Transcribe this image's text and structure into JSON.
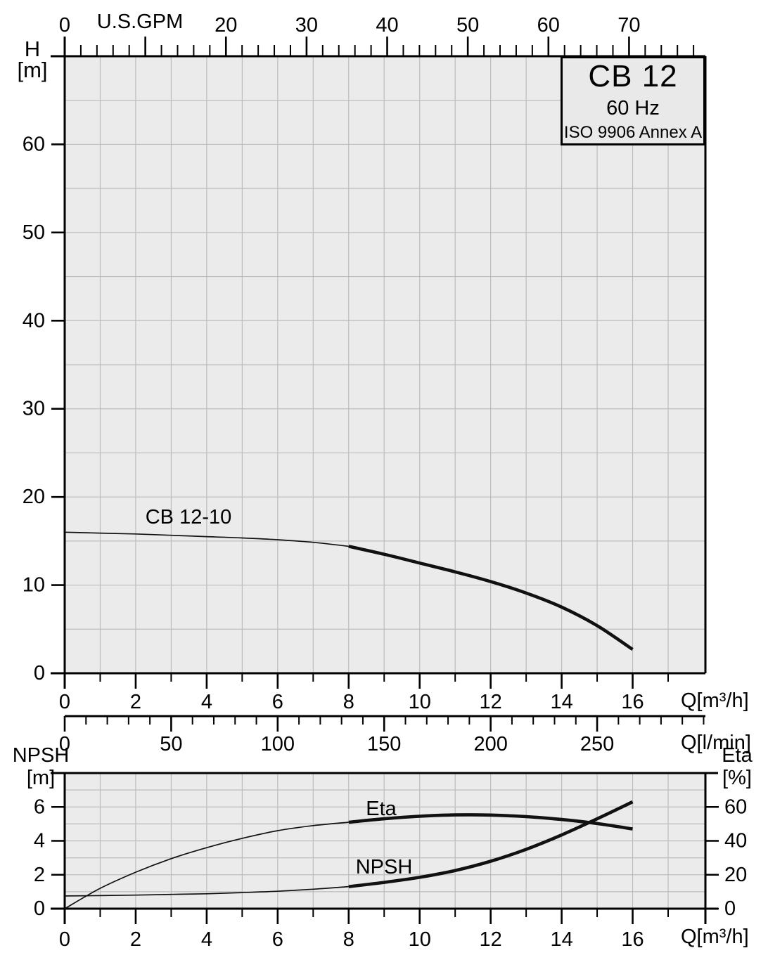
{
  "title_box": {
    "model": "CB 12",
    "frequency": "60 Hz",
    "standard": "ISO 9906 Annex A"
  },
  "labels": {
    "h_axis": "H",
    "h_unit": "[m]",
    "gpm_axis_title": "U.S.GPM",
    "q_m3h": "Q[m³/h]",
    "q_lmin": "Q[l/min]",
    "q_m3h_lower": "Q[m³/h]",
    "npsh_axis": "NPSH",
    "npsh_unit": "[m]",
    "eta_axis": "Eta",
    "eta_unit": "[%]",
    "curve_main": "CB 12-10",
    "curve_eta": "Eta",
    "curve_npsh": "NPSH"
  },
  "colors": {
    "plot_bg": "#ebebeb",
    "grid": "#bcbcbc",
    "axis": "#000000",
    "curve": "#111111",
    "title_box_bg": "#e9e9e9"
  },
  "chart_data": [
    {
      "type": "line",
      "title": "CB 12 pump head curve, 60 Hz",
      "xlabel": "Q[m³/h]",
      "ylabel": "H [m]",
      "xlim": [
        0,
        18.05
      ],
      "ylim": [
        0,
        70
      ],
      "x_major_ticks": [
        0,
        2,
        4,
        6,
        8,
        10,
        12,
        14,
        16
      ],
      "x_minor_ticks": [
        1,
        3,
        5,
        7,
        9,
        11,
        13,
        15,
        17
      ],
      "y_ticks": [
        0,
        10,
        20,
        30,
        40,
        50,
        60
      ],
      "y_grid_step": 5,
      "x_grid_step": 1,
      "grid": true,
      "top_axis": {
        "title": "U.S.GPM",
        "unit": "US GPM",
        "major_ticks": [
          0,
          10,
          20,
          30,
          40,
          50,
          60,
          70
        ],
        "title_replaces_tick": 10,
        "minor_step": 2,
        "minor_max": 78,
        "gpm_per_m3h": 4.4029
      },
      "lmin_axis": {
        "label": "Q[l/min]",
        "major_ticks": [
          0,
          50,
          100,
          150,
          200,
          250
        ],
        "minor_step": 10,
        "minor_max": 300,
        "lmin_per_m3h": 16.667
      },
      "series": [
        {
          "name": "CB 12-10",
          "x": [
            0,
            1,
            2,
            3,
            4,
            5,
            6,
            7,
            8,
            9,
            10,
            11,
            12,
            13,
            14,
            15,
            16
          ],
          "y": [
            16.0,
            15.9,
            15.8,
            15.65,
            15.5,
            15.35,
            15.15,
            14.85,
            14.4,
            13.5,
            12.5,
            11.5,
            10.4,
            9.1,
            7.5,
            5.4,
            2.7
          ],
          "thick_from_x": 8
        }
      ]
    },
    {
      "type": "line",
      "title": "NPSH and efficiency curves",
      "xlabel": "Q[m³/h]",
      "ylabel_left": "NPSH [m]",
      "ylabel_right": "Eta [%]",
      "xlim": [
        0,
        18.05
      ],
      "ylim_left": [
        0,
        8
      ],
      "ylim_right": [
        0,
        80
      ],
      "x_major_ticks": [
        0,
        2,
        4,
        6,
        8,
        10,
        12,
        14,
        16
      ],
      "x_minor_ticks": [
        1,
        3,
        5,
        7,
        9,
        11,
        13,
        15,
        17
      ],
      "y_left_ticks": [
        0,
        2,
        4,
        6
      ],
      "y_right_ticks": [
        0,
        20,
        40,
        60
      ],
      "y_grid_step_left": 1,
      "x_grid_step": 1,
      "grid": true,
      "series": [
        {
          "name": "Eta",
          "axis": "right",
          "x": [
            0,
            1,
            2,
            3,
            4,
            5,
            6,
            7,
            8,
            9,
            10,
            11,
            12,
            13,
            14,
            15,
            16
          ],
          "y": [
            0,
            12,
            21.5,
            29.5,
            36,
            41.5,
            46,
            49,
            51,
            53,
            54.5,
            55.3,
            55.2,
            54.3,
            52.6,
            50.2,
            47
          ],
          "thick_from_x": 8
        },
        {
          "name": "NPSH",
          "axis": "left",
          "x": [
            0,
            1,
            2,
            3,
            4,
            5,
            6,
            7,
            8,
            9,
            10,
            11,
            12,
            13,
            14,
            15,
            16
          ],
          "y": [
            0.75,
            0.77,
            0.8,
            0.84,
            0.88,
            0.95,
            1.03,
            1.15,
            1.3,
            1.55,
            1.85,
            2.25,
            2.8,
            3.5,
            4.35,
            5.3,
            6.3
          ],
          "thick_from_x": 8
        }
      ]
    }
  ]
}
